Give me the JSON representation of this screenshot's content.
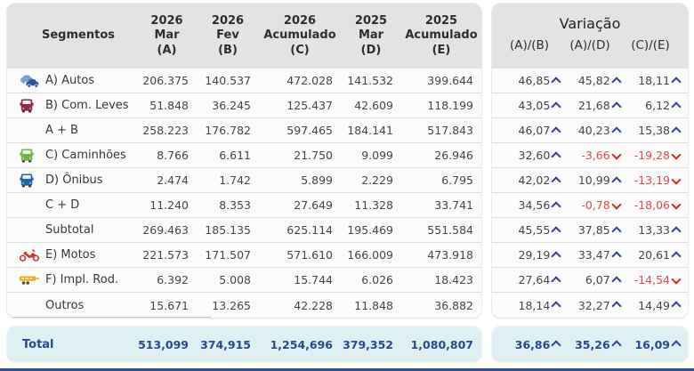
{
  "segments_table": {
    "header_col": "Segmentos",
    "columns": [
      {
        "year": "2026",
        "period": "Mar",
        "key": "(A)"
      },
      {
        "year": "2026",
        "period": "Fev",
        "key": "(B)"
      },
      {
        "year": "2026",
        "period": "Acumulado",
        "key": "(C)"
      },
      {
        "year": "2025",
        "period": "Mar",
        "key": "(D)"
      },
      {
        "year": "2025",
        "period": "Acumulado",
        "key": "(E)"
      }
    ],
    "rows": [
      {
        "label": "A) Autos",
        "icon": "autos-icon",
        "values": [
          "206.375",
          "140.537",
          "472.028",
          "141.532",
          "399.644"
        ]
      },
      {
        "label": "B) Com. Leves",
        "icon": "comleves-icon",
        "values": [
          "51.848",
          "36.245",
          "125.437",
          "42.609",
          "118.199"
        ]
      },
      {
        "label": "A + B",
        "icon": null,
        "values": [
          "258.223",
          "176.782",
          "597.465",
          "184.141",
          "517.843"
        ]
      },
      {
        "label": "C) Caminhões",
        "icon": "caminhoes-icon",
        "values": [
          "8.766",
          "6.611",
          "21.750",
          "9.099",
          "26.946"
        ]
      },
      {
        "label": "D) Ônibus",
        "icon": "onibus-icon",
        "values": [
          "2.474",
          "1.742",
          "5.899",
          "2.229",
          "6.795"
        ]
      },
      {
        "label": "C + D",
        "icon": null,
        "values": [
          "11.240",
          "8.353",
          "27.649",
          "11.328",
          "33.741"
        ]
      },
      {
        "label": "Subtotal",
        "icon": null,
        "values": [
          "269.463",
          "185.135",
          "625.114",
          "195.469",
          "551.584"
        ]
      },
      {
        "label": "E) Motos",
        "icon": "motos-icon",
        "values": [
          "221.573",
          "171.507",
          "571.610",
          "166.009",
          "473.918"
        ]
      },
      {
        "label": "F) Impl. Rod.",
        "icon": "implrod-icon",
        "values": [
          "6.392",
          "5.008",
          "15.744",
          "6.026",
          "18.423"
        ]
      },
      {
        "label": "Outros",
        "icon": null,
        "values": [
          "15.671",
          "13.265",
          "42.228",
          "11.848",
          "36.882"
        ]
      }
    ],
    "total": {
      "label": "Total",
      "values": [
        "513,099",
        "374,915",
        "1,254,696",
        "379,352",
        "1,080,807"
      ]
    }
  },
  "variation_table": {
    "title": "Variação",
    "columns": [
      "(A)/(B)",
      "(A)/(D)",
      "(C)/(E)"
    ],
    "rows": [
      [
        "46,85",
        "45,82",
        "18,11"
      ],
      [
        "43,05",
        "21,68",
        "6,12"
      ],
      [
        "46,07",
        "40,23",
        "15,38"
      ],
      [
        "32,60",
        "-3,66",
        "-19,28"
      ],
      [
        "42,02",
        "10,99",
        "-13,19"
      ],
      [
        "34,56",
        "-0,78",
        "-18,06"
      ],
      [
        "45,55",
        "37,85",
        "13,33"
      ],
      [
        "29,19",
        "33,47",
        "20,61"
      ],
      [
        "27,64",
        "6,07",
        "-14,54"
      ],
      [
        "18,14",
        "32,27",
        "14,49"
      ]
    ],
    "total": [
      "36,86",
      "35,26",
      "16,09"
    ]
  },
  "colors": {
    "header_bg": "#e3e3e3",
    "total_row_bg": "#dff0f2",
    "total_text": "#27498f",
    "positive_arrow": "#333f99",
    "negative_text": "#e04b4b",
    "negative_arrow": "#cf2626",
    "bottom_bar": "#33508f",
    "icon_autos": "#2f56a4",
    "icon_com_leves": "#992744",
    "icon_caminhoes": "#74b349",
    "icon_onibus": "#1d67ae",
    "icon_motos": "#c53838",
    "icon_impl_rod": "#f3a81b"
  },
  "chart_data": {
    "type": "table",
    "title": "",
    "columns": [
      "Segmentos",
      "2026 Mar (A)",
      "2026 Fev (B)",
      "2026 Acumulado (C)",
      "2025 Mar (D)",
      "2025 Acumulado (E)",
      "Variação (A)/(B)",
      "Variação (A)/(D)",
      "Variação (C)/(E)"
    ],
    "rows": [
      [
        "A) Autos",
        206375,
        140537,
        472028,
        141532,
        399644,
        46.85,
        45.82,
        18.11
      ],
      [
        "B) Com. Leves",
        51848,
        36245,
        125437,
        42609,
        118199,
        43.05,
        21.68,
        6.12
      ],
      [
        "A + B",
        258223,
        176782,
        597465,
        184141,
        517843,
        46.07,
        40.23,
        15.38
      ],
      [
        "C) Caminhões",
        8766,
        6611,
        21750,
        9099,
        26946,
        32.6,
        -3.66,
        -19.28
      ],
      [
        "D) Ônibus",
        2474,
        1742,
        5899,
        2229,
        6795,
        42.02,
        10.99,
        -13.19
      ],
      [
        "C + D",
        11240,
        8353,
        27649,
        11328,
        33741,
        34.56,
        -0.78,
        -18.06
      ],
      [
        "Subtotal",
        269463,
        185135,
        625114,
        195469,
        551584,
        45.55,
        37.85,
        13.33
      ],
      [
        "E) Motos",
        221573,
        171507,
        571610,
        166009,
        473918,
        29.19,
        33.47,
        20.61
      ],
      [
        "F) Impl. Rod.",
        6392,
        5008,
        15744,
        6026,
        18423,
        27.64,
        6.07,
        -14.54
      ],
      [
        "Outros",
        15671,
        13265,
        42228,
        11848,
        36882,
        18.14,
        32.27,
        14.49
      ],
      [
        "Total",
        513099,
        374915,
        1254696,
        379352,
        1080807,
        36.86,
        35.26,
        16.09
      ]
    ]
  }
}
